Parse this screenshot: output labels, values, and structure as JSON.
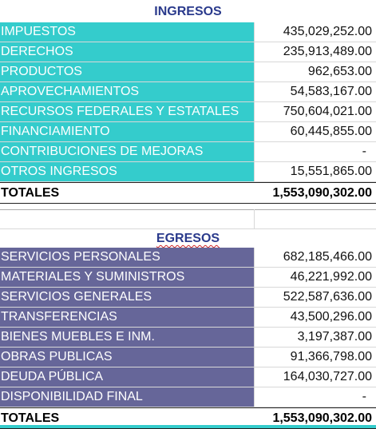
{
  "ingresos": {
    "header": "INGRESOS",
    "rows": [
      {
        "label": "IMPUESTOS",
        "value": "435,029,252.00"
      },
      {
        "label": "DERECHOS",
        "value": "235,913,489.00"
      },
      {
        "label": "PRODUCTOS",
        "value": "962,653.00"
      },
      {
        "label": "APROVECHAMIENTOS",
        "value": "54,583,167.00"
      },
      {
        "label": "RECURSOS FEDERALES Y ESTATALES",
        "value": "750,604,021.00"
      },
      {
        "label": "FINANCIAMIENTO",
        "value": "60,445,855.00"
      },
      {
        "label": "CONTRIBUCIONES DE MEJORAS",
        "value": "-"
      },
      {
        "label": "OTROS INGRESOS",
        "value": "15,551,865.00"
      }
    ],
    "total_label": "TOTALES",
    "total_value": "1,553,090,302.00"
  },
  "egresos": {
    "header": "EGRESOS",
    "rows": [
      {
        "label": "SERVICIOS PERSONALES",
        "value": "682,185,466.00"
      },
      {
        "label": "MATERIALES Y SUMINISTROS",
        "value": "46,221,992.00"
      },
      {
        "label": "SERVICIOS GENERALES",
        "value": "522,587,636.00"
      },
      {
        "label": "TRANSFERENCIAS",
        "value": "43,500,296.00"
      },
      {
        "label": "BIENES MUEBLES E INM.",
        "value": "3,197,387.00"
      },
      {
        "label": "OBRAS PUBLICAS",
        "value": "91,366,798.00"
      },
      {
        "label": "DEUDA PÚBLICA",
        "value": "164,030,727.00"
      },
      {
        "label": "DISPONIBILIDAD FINAL",
        "value": "-"
      }
    ],
    "total_label": "TOTALES",
    "total_value": "1,553,090,302.00"
  },
  "colors": {
    "ingresos_fill": "#34cccc",
    "egresos_fill": "#666699",
    "header_text": "#2a3a8c"
  }
}
